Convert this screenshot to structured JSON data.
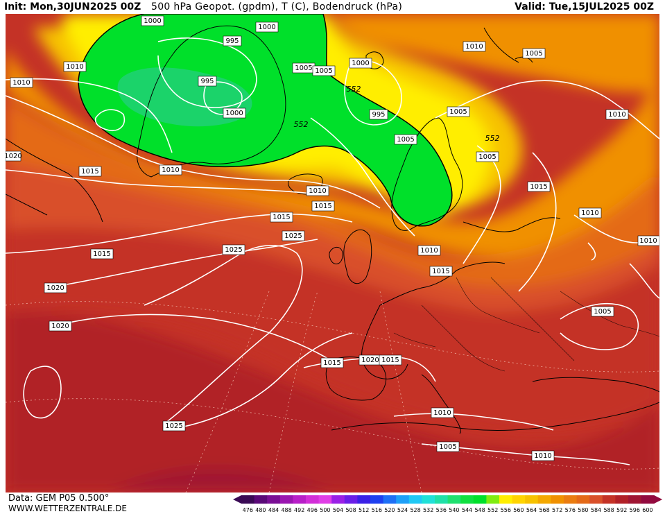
{
  "header": {
    "init": "Init: Mon,30JUN2025 00Z",
    "title": "500 hPa Geopot. (gpdm), T (C), Bodendruck (hPa)",
    "valid": "Valid: Tue,15JUL2025 00Z"
  },
  "footer": {
    "data": "Data: GEM P05 0.500°",
    "site": "WWW.WETTERZENTRALE.DE"
  },
  "colors": {
    "trough": "#00e02a",
    "trough_core": "#22d07a",
    "yellow": "#ffee00",
    "gold": "#f7c200",
    "orange": "#f09000",
    "dark_orange": "#e46a18",
    "red_orange": "#d9502a",
    "red": "#c43226",
    "deep_red": "#b12027",
    "crimson": "#a01633",
    "isobar": "#ffffff",
    "coast": "#000000"
  },
  "isobar_labels": [
    "1000",
    "995",
    "1000",
    "1010",
    "1010",
    "995",
    "1005",
    "1005",
    "1000",
    "552",
    "995",
    "1000",
    "552",
    "1005",
    "1010",
    "1005",
    "1010",
    "552",
    "1005",
    "1015",
    "1020",
    "1010",
    "1015",
    "1010",
    "1015",
    "1005",
    "1015",
    "1010",
    "1015",
    "1025",
    "1010",
    "1020",
    "1025",
    "1015",
    "1020",
    "1015",
    "1020",
    "1015",
    "1010",
    "1005",
    "1010",
    "1005",
    "1025",
    "1010"
  ],
  "legend": {
    "values": [
      "476",
      "480",
      "484",
      "488",
      "492",
      "496",
      "500",
      "504",
      "508",
      "512",
      "516",
      "520",
      "524",
      "528",
      "532",
      "536",
      "540",
      "544",
      "548",
      "552",
      "556",
      "560",
      "564",
      "568",
      "572",
      "576",
      "580",
      "584",
      "588",
      "592",
      "596",
      "600"
    ],
    "colors": [
      "#3a0a55",
      "#5a0a78",
      "#7a0f95",
      "#9a16b0",
      "#b81fc8",
      "#d22ed8",
      "#e03ee6",
      "#9a20e6",
      "#6a1ee8",
      "#3a20e6",
      "#1e40f0",
      "#1e70f6",
      "#1ea0f8",
      "#20c8f4",
      "#20e0d8",
      "#20e0a8",
      "#20e070",
      "#10e040",
      "#00e02a",
      "#80ec10",
      "#ffee00",
      "#ffd400",
      "#f7c200",
      "#f4a800",
      "#f09000",
      "#ea7c10",
      "#e46a18",
      "#d9502a",
      "#c43226",
      "#b12027",
      "#a01633",
      "#920a3e"
    ]
  }
}
